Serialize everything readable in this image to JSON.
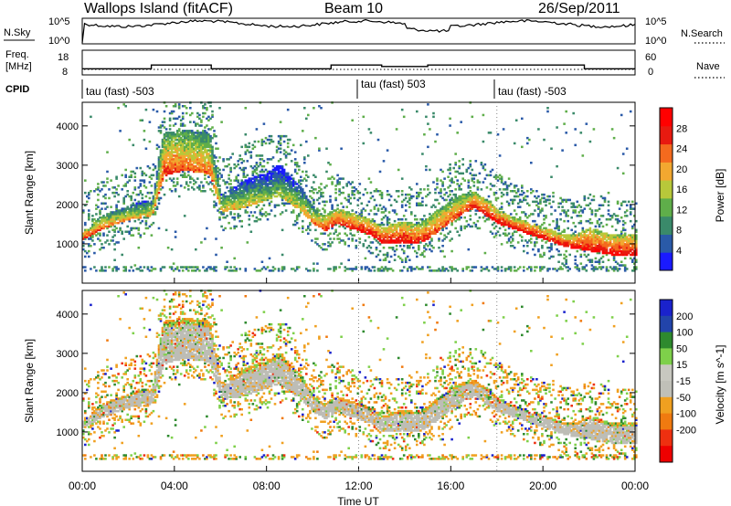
{
  "header": {
    "station": "Wallops Island (fitACF)",
    "beam": "Beam 10",
    "date": "26/Sep/2011"
  },
  "top_panels": {
    "nsky": {
      "label": "N.Sky",
      "ticks_left": [
        "10^5",
        "10^0"
      ],
      "ticks_right": [
        "10^5",
        "10^0"
      ],
      "right_label": "N.Search"
    },
    "freq": {
      "label_line1": "Freq.",
      "label_line2": "[MHz]",
      "ticks_left": [
        "18",
        "8"
      ],
      "ticks_right": [
        "60",
        "0"
      ],
      "right_label": "Nave"
    },
    "cpid": {
      "label": "CPID",
      "segments": [
        {
          "text": "tau (fast) -503",
          "start_hour": 0
        },
        {
          "text": "tau (fast) 503",
          "start_hour": 12.0
        },
        {
          "text": "tau (fast) -503",
          "start_hour": 18.0
        }
      ]
    },
    "freq_steps": [
      {
        "from_hour": 0,
        "to_hour": 3.0,
        "mhz": 10.5
      },
      {
        "from_hour": 3.0,
        "to_hour": 5.6,
        "mhz": 12.0
      },
      {
        "from_hour": 5.6,
        "to_hour": 10.8,
        "mhz": 10.5
      },
      {
        "from_hour": 10.8,
        "to_hour": 13.0,
        "mhz": 12.0
      },
      {
        "from_hour": 13.0,
        "to_hour": 15.0,
        "mhz": 11.4
      },
      {
        "from_hour": 15.0,
        "to_hour": 21.8,
        "mhz": 12.0
      },
      {
        "from_hour": 21.8,
        "to_hour": 24.0,
        "mhz": 10.5
      }
    ]
  },
  "chart_data": [
    {
      "type": "heatmap",
      "quantity": "Power",
      "ylabel": "Slant Range [km]",
      "ylim": [
        0,
        4600
      ],
      "y_ticks": [
        1000,
        2000,
        3000,
        4000
      ],
      "xlim_hours": [
        0,
        24
      ],
      "colorbar": {
        "label": "Power [dB]",
        "ticks": [
          "4",
          "8",
          "12",
          "16",
          "20",
          "24",
          "28"
        ],
        "range": [
          0,
          32
        ]
      },
      "echo_band": {
        "hours": [
          0.0,
          0.5,
          1.0,
          1.5,
          2.0,
          2.5,
          3.0,
          3.5,
          4.0,
          4.5,
          5.0,
          5.5,
          6.0,
          6.5,
          7.0,
          7.5,
          8.0,
          8.5,
          9.0,
          9.5,
          10.0,
          10.5,
          11.0,
          11.5,
          12.0,
          12.5,
          13.0,
          13.5,
          14.0,
          14.5,
          15.0,
          15.5,
          16.0,
          16.5,
          17.0,
          17.5,
          18.0,
          18.5,
          19.0,
          19.5,
          20.0,
          20.5,
          21.0,
          21.5,
          22.0,
          22.5,
          23.0,
          23.5,
          24.0
        ],
        "lower_km": [
          1100,
          1250,
          1400,
          1500,
          1600,
          1650,
          1700,
          2700,
          2800,
          2850,
          2800,
          2750,
          1800,
          1850,
          1900,
          2000,
          2100,
          2200,
          2000,
          1800,
          1500,
          1300,
          1500,
          1400,
          1300,
          1200,
          1000,
          1000,
          1000,
          1000,
          1100,
          1350,
          1550,
          1750,
          1900,
          1700,
          1500,
          1400,
          1300,
          1200,
          1100,
          1000,
          900,
          850,
          800,
          750,
          700,
          700,
          700
        ],
        "upper_km": [
          1300,
          1550,
          1750,
          1850,
          1950,
          2050,
          2100,
          3800,
          3850,
          3900,
          3850,
          3800,
          2250,
          2400,
          2600,
          2700,
          2800,
          3000,
          2700,
          2400,
          1900,
          1700,
          1900,
          1800,
          1700,
          1600,
          1400,
          1500,
          1550,
          1500,
          1650,
          1900,
          2100,
          2250,
          2300,
          2100,
          1850,
          1700,
          1600,
          1500,
          1400,
          1300,
          1200,
          1250,
          1400,
          1300,
          1200,
          1200,
          1200
        ],
        "peak_power_db": [
          28,
          26,
          24,
          22,
          22,
          20,
          20,
          26,
          26,
          24,
          24,
          24,
          20,
          20,
          18,
          18,
          16,
          16,
          18,
          20,
          24,
          28,
          28,
          28,
          30,
          30,
          30,
          30,
          30,
          28,
          28,
          26,
          26,
          26,
          28,
          30,
          30,
          30,
          30,
          30,
          30,
          30,
          30,
          30,
          30,
          30,
          30,
          30,
          30
        ]
      }
    },
    {
      "type": "heatmap",
      "quantity": "Velocity",
      "ylabel": "Slant Range [km]",
      "ylim": [
        0,
        4600
      ],
      "y_ticks": [
        1000,
        2000,
        3000,
        4000
      ],
      "xlim_hours": [
        0,
        24
      ],
      "xlabel": "Time UT",
      "x_ticks": [
        "00:00",
        "04:00",
        "08:00",
        "12:00",
        "16:00",
        "20:00",
        "00:00"
      ],
      "colorbar": {
        "label": "Velocity [m s^-1]",
        "ticks": [
          "200",
          "100",
          "50",
          "15",
          "-15",
          "-50",
          "-100",
          "-200"
        ]
      }
    }
  ],
  "colors": {
    "power_scale": [
      "#1a1aff",
      "#2a5aa8",
      "#3a8a6a",
      "#5fae4a",
      "#b8c83a",
      "#f2a830",
      "#f46a1e",
      "#e81a10",
      "#ff0000"
    ],
    "velocity_scale": [
      "#1a22cc",
      "#2244aa",
      "#2e8a2e",
      "#7ed04a",
      "#c8c8c0",
      "#c0c0b8",
      "#f0a020",
      "#f07a10",
      "#ee3010",
      "#ee0000"
    ],
    "ground_scatter": "#bdbdb6"
  }
}
